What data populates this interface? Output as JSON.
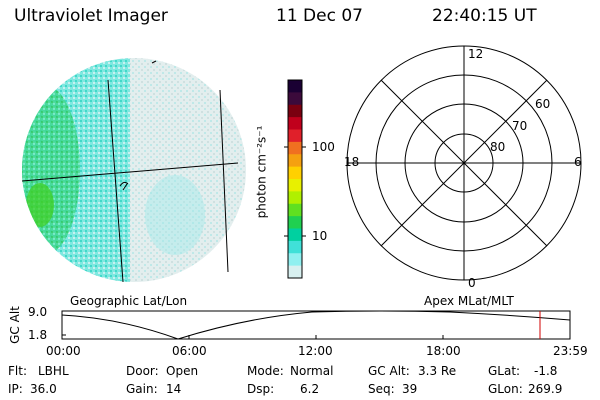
{
  "header": {
    "instrument": "Ultraviolet Imager",
    "date": "11 Dec 07",
    "time": "22:40:15 UT"
  },
  "colorbar": {
    "label": "photon cm⁻²s⁻¹",
    "ticks": [
      "100",
      "10"
    ],
    "colors": [
      "#1a0033",
      "#3b0a3b",
      "#7a0010",
      "#c0001c",
      "#e0202a",
      "#f07020",
      "#f5a010",
      "#ffd000",
      "#e8f000",
      "#b0f000",
      "#60e020",
      "#20d050",
      "#00d0a0",
      "#40e0d8",
      "#90f0f0",
      "#d8f0f0"
    ]
  },
  "polar": {
    "mlt_labels": [
      "12",
      "6",
      "0",
      "18"
    ],
    "lat_labels": [
      "60",
      "70",
      "80"
    ]
  },
  "map_labels": {
    "left": "Geographic Lat/Lon",
    "right": "Apex MLat/MLT"
  },
  "altitude_plot": {
    "ylabel": "GC Alt",
    "yticks": [
      "9.0",
      "1.8"
    ],
    "xticks": [
      "00:00",
      "06:00",
      "12:00",
      "18:00",
      "23:59"
    ],
    "marker_time": "22:40"
  },
  "footer": {
    "row1": [
      {
        "label": "Flt:",
        "value": "LBHL"
      },
      {
        "label": "Door:",
        "value": "Open"
      },
      {
        "label": "Mode:",
        "value": "Normal"
      },
      {
        "label": "GC Alt:",
        "value": "3.3 Re"
      },
      {
        "label": "GLat:",
        "value": "-1.8"
      }
    ],
    "row2": [
      {
        "label": "IP:",
        "value": "36.0"
      },
      {
        "label": "Gain:",
        "value": "14"
      },
      {
        "label": "Dsp:",
        "value": "6.2"
      },
      {
        "label": "Seq:",
        "value": "39"
      },
      {
        "label": "GLon:",
        "value": "269.9"
      }
    ]
  }
}
